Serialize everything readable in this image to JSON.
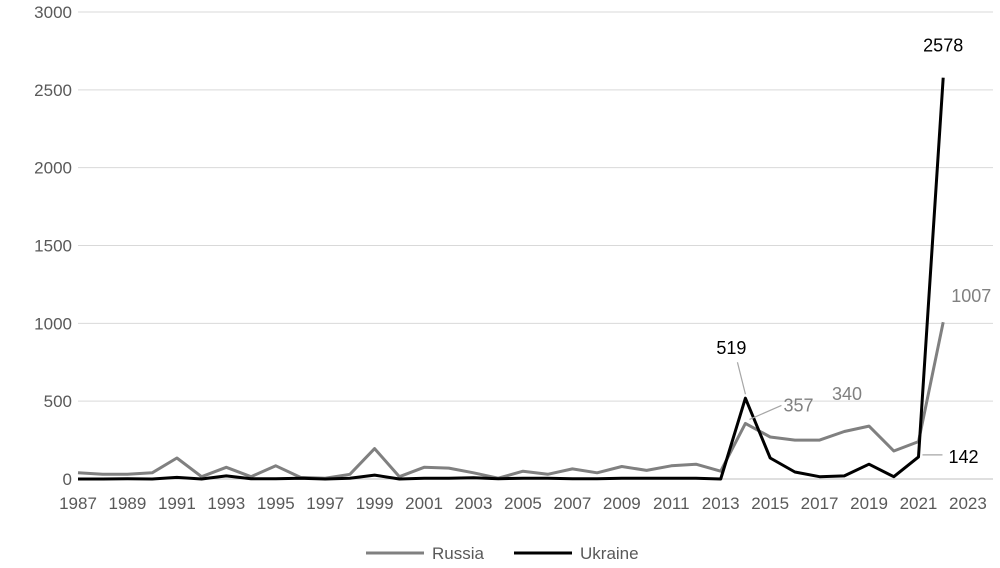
{
  "chart_data": {
    "type": "line",
    "title": "",
    "xlabel": "",
    "ylabel": "",
    "x": [
      1987,
      1988,
      1989,
      1990,
      1991,
      1992,
      1993,
      1994,
      1995,
      1996,
      1997,
      1998,
      1999,
      2000,
      2001,
      2002,
      2003,
      2004,
      2005,
      2006,
      2007,
      2008,
      2009,
      2010,
      2011,
      2012,
      2013,
      2014,
      2015,
      2016,
      2017,
      2018,
      2019,
      2020,
      2021,
      2022
    ],
    "xlim": [
      1987,
      2023
    ],
    "ylim": [
      0,
      3000
    ],
    "x_ticks": [
      "1987",
      "1989",
      "1991",
      "1993",
      "1995",
      "1997",
      "1999",
      "2001",
      "2003",
      "2005",
      "2007",
      "2009",
      "2011",
      "2013",
      "2015",
      "2017",
      "2019",
      "2021",
      "2023"
    ],
    "y_ticks": [
      "0",
      "500",
      "1000",
      "1500",
      "2000",
      "2500",
      "3000"
    ],
    "grid": true,
    "legend_position": "bottom",
    "series": [
      {
        "name": "Russia",
        "color": "#808080",
        "values": [
          40,
          30,
          30,
          40,
          135,
          15,
          75,
          15,
          85,
          10,
          5,
          30,
          195,
          15,
          75,
          70,
          40,
          5,
          50,
          30,
          65,
          40,
          80,
          55,
          85,
          95,
          50,
          357,
          270,
          250,
          250,
          305,
          340,
          180,
          240,
          1007
        ]
      },
      {
        "name": "Ukraine",
        "color": "#000000",
        "values": [
          0,
          0,
          2,
          0,
          10,
          0,
          20,
          2,
          2,
          5,
          0,
          5,
          25,
          0,
          5,
          5,
          8,
          2,
          5,
          5,
          2,
          2,
          5,
          5,
          5,
          5,
          0,
          519,
          135,
          45,
          15,
          20,
          95,
          15,
          142,
          2578
        ]
      }
    ],
    "annotations": [
      {
        "text": "2578",
        "series": "Ukraine",
        "x": 2022
      },
      {
        "text": "1007",
        "series": "Russia",
        "x": 2022
      },
      {
        "text": "519",
        "series": "Ukraine",
        "x": 2014
      },
      {
        "text": "357",
        "series": "Russia",
        "x": 2014
      },
      {
        "text": "340",
        "series": "Russia",
        "x": 2019
      },
      {
        "text": "142",
        "series": "Ukraine",
        "x": 2021
      }
    ]
  }
}
